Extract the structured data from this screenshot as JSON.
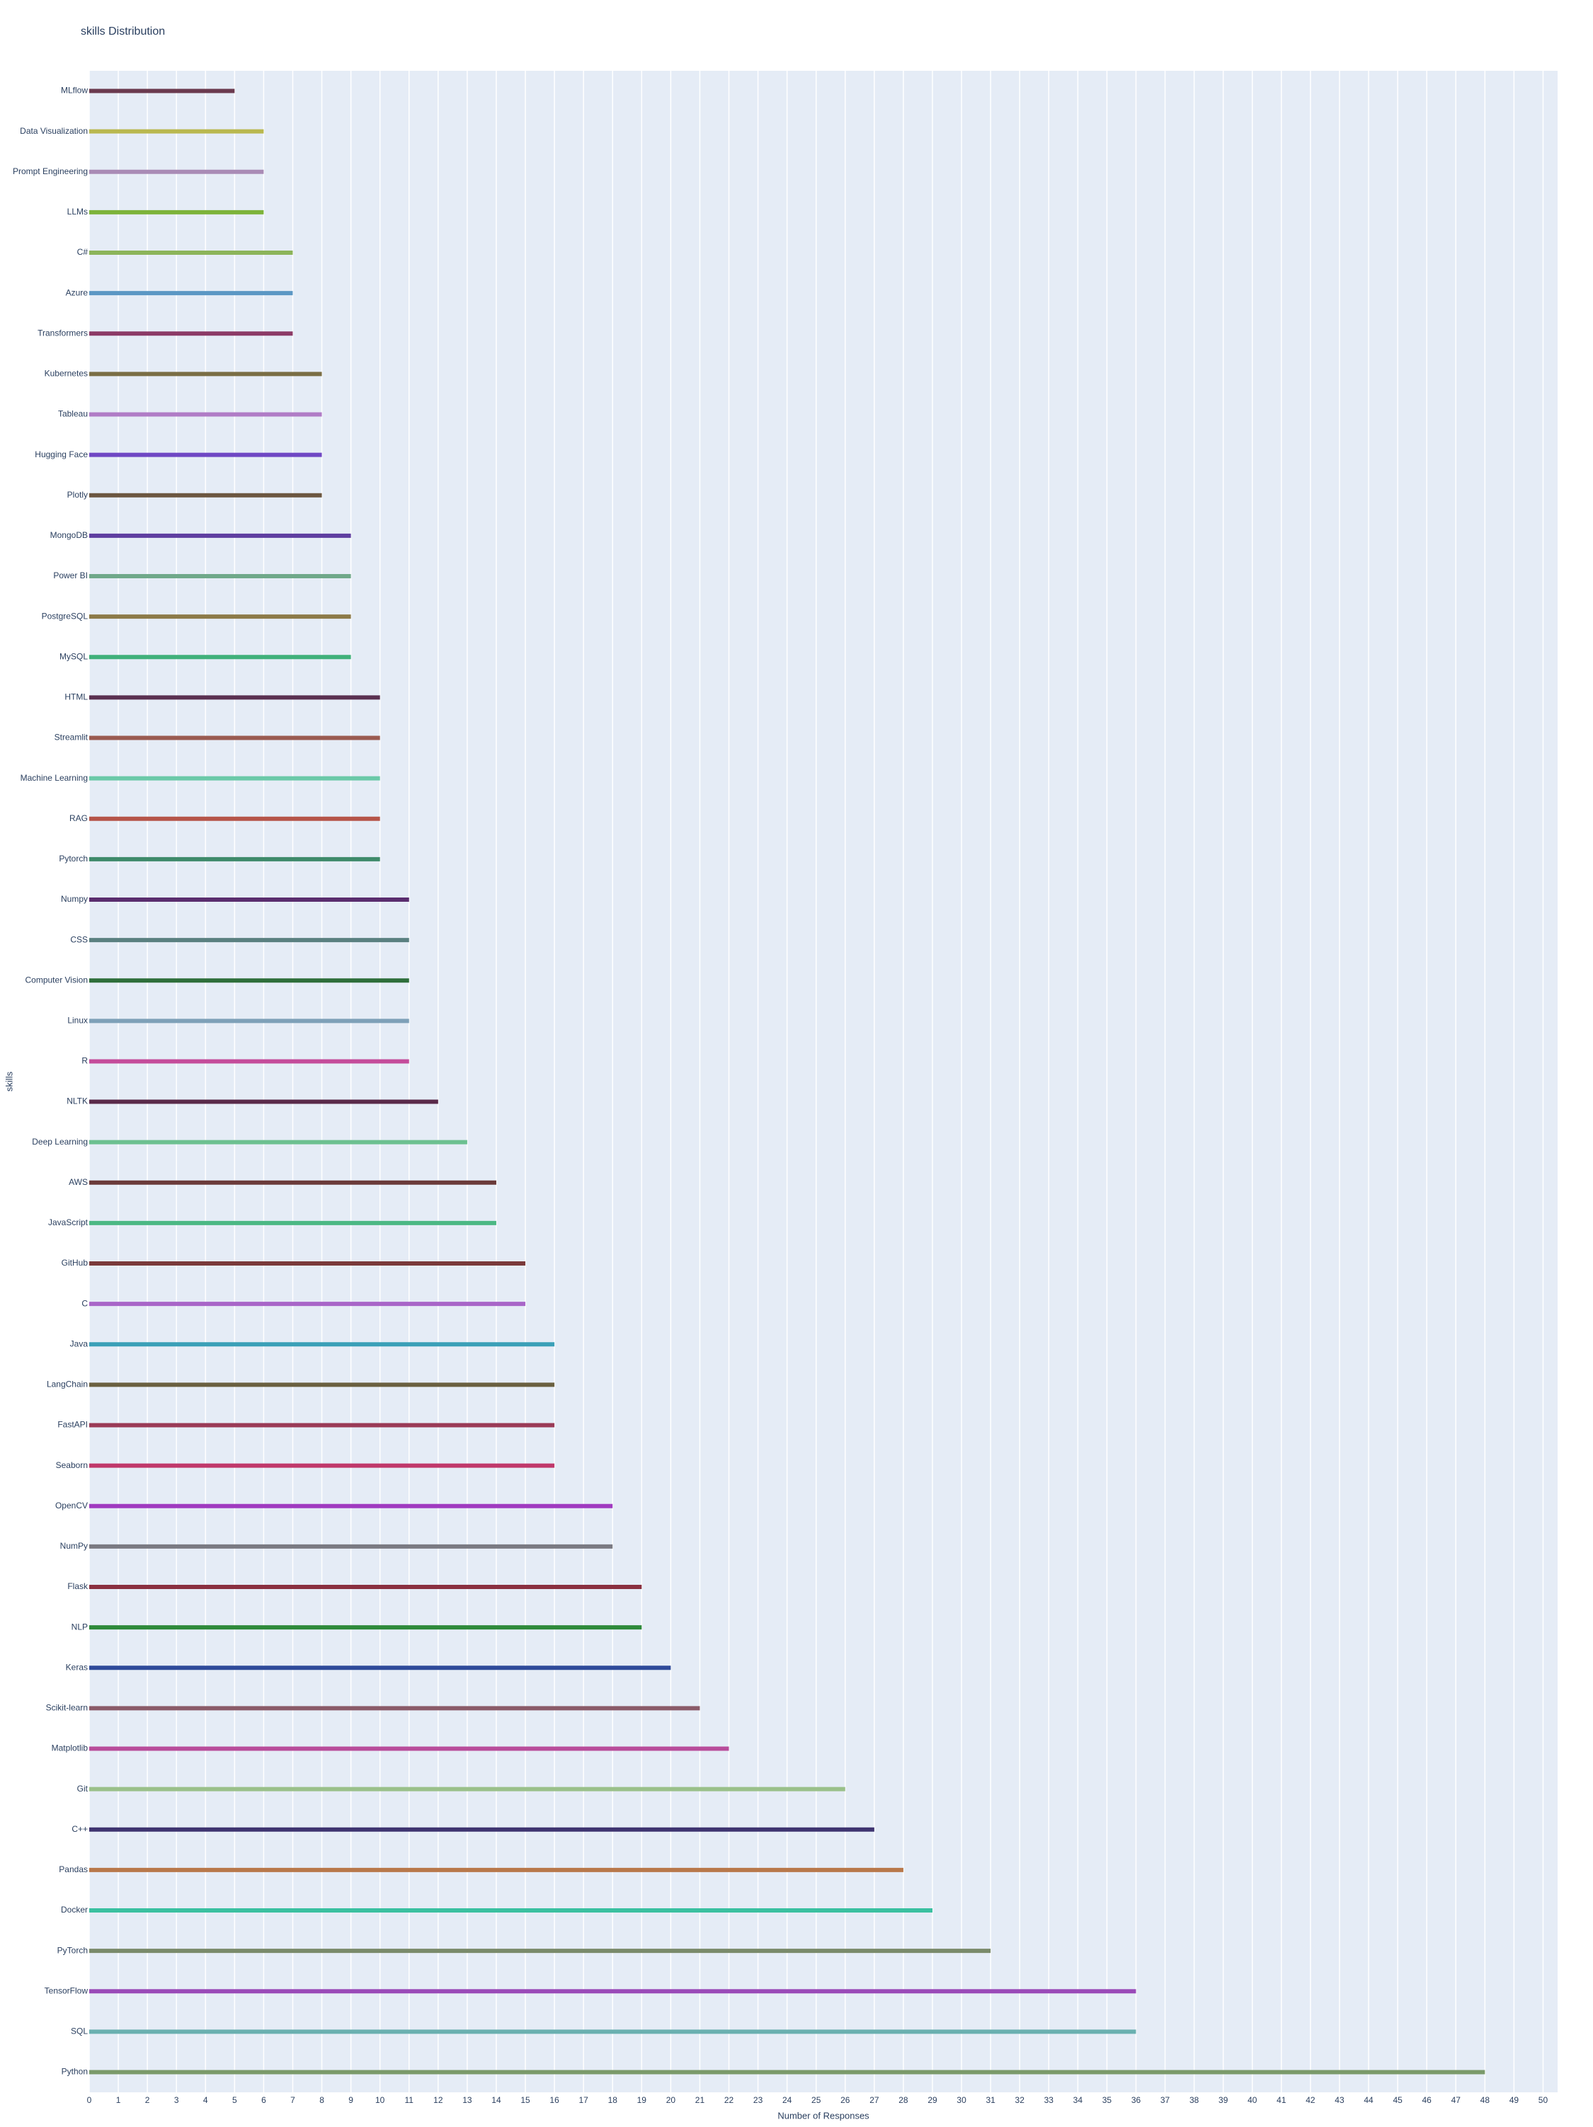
{
  "chart_data": {
    "type": "bar",
    "orientation": "h",
    "title": "skills Distribution",
    "x_label": "Number of Responses",
    "y_label": "skills",
    "categories": [
      "MLflow",
      "Data Visualization",
      "Prompt Engineering",
      "LLMs",
      "C#",
      "Azure",
      "Transformers",
      "Kubernetes",
      "Tableau",
      "Hugging Face",
      "Plotly",
      "MongoDB",
      "Power BI",
      "PostgreSQL",
      "MySQL",
      "HTML",
      "Streamlit",
      "Machine Learning",
      "RAG",
      "Pytorch",
      "Numpy",
      "CSS",
      "Computer Vision",
      "Linux",
      "R",
      "NLTK",
      "Deep Learning",
      "AWS",
      "JavaScript",
      "GitHub",
      "C",
      "Java",
      "LangChain",
      "FastAPI",
      "Seaborn",
      "OpenCV",
      "NumPy",
      "Flask",
      "NLP",
      "Keras",
      "Scikit-learn",
      "Matplotlib",
      "Git",
      "C++",
      "Pandas",
      "Docker",
      "PyTorch",
      "TensorFlow",
      "SQL",
      "Python"
    ],
    "values": [
      5,
      6,
      6,
      6,
      7,
      7,
      7,
      8,
      8,
      8,
      8,
      9,
      9,
      9,
      9,
      10,
      10,
      10,
      10,
      10,
      11,
      11,
      11,
      11,
      11,
      12,
      13,
      14,
      14,
      15,
      15,
      16,
      16,
      16,
      16,
      18,
      18,
      19,
      19,
      20,
      21,
      22,
      26,
      27,
      28,
      29,
      31,
      36,
      36,
      48
    ],
    "colors": [
      "#6b3a4f",
      "#b9b84f",
      "#a98bb5",
      "#7db33a",
      "#8cb45a",
      "#5b97c4",
      "#8c3a66",
      "#7a6e45",
      "#b07cc6",
      "#6f47c4",
      "#6b5640",
      "#5e3ea0",
      "#6fa88a",
      "#8c7a48",
      "#3fb07a",
      "#5a3050",
      "#9a5a50",
      "#6ac9a8",
      "#b55448",
      "#3e8a6a",
      "#5a2d6e",
      "#5a8080",
      "#2e6e3a",
      "#7ea0b8",
      "#c44c9a",
      "#5a2a4a",
      "#6cc090",
      "#6a3a3a",
      "#4cb884",
      "#7a3a3a",
      "#a866c8",
      "#3aa0b8",
      "#6a6040",
      "#9a3a56",
      "#c0386a",
      "#a03ac0",
      "#7a7a82",
      "#8a3040",
      "#2e8a3a",
      "#2e4a9a",
      "#8a5a68",
      "#b84c9a",
      "#9ac08a",
      "#3e3470",
      "#b8784a",
      "#3ac0a0",
      "#7a8a6a",
      "#9a4ab8",
      "#6ab0b0",
      "#7a9a6a"
    ],
    "xlim": [
      0,
      50.5
    ],
    "xticks": [
      0,
      1,
      2,
      3,
      4,
      5,
      6,
      7,
      8,
      9,
      10,
      11,
      12,
      13,
      14,
      15,
      16,
      17,
      18,
      19,
      20,
      21,
      22,
      23,
      24,
      25,
      26,
      27,
      28,
      29,
      30,
      31,
      32,
      33,
      34,
      35,
      36,
      37,
      38,
      39,
      40,
      41,
      42,
      43,
      44,
      45,
      46,
      47,
      48,
      49,
      50
    ],
    "grid": true
  }
}
